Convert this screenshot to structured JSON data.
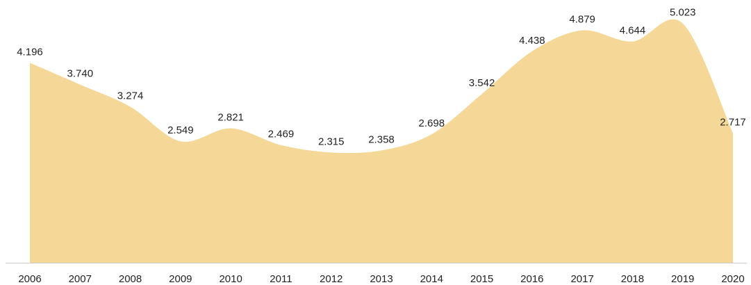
{
  "chart_data": {
    "type": "area",
    "categories": [
      "2006",
      "2007",
      "2008",
      "2009",
      "2010",
      "2011",
      "2012",
      "2013",
      "2014",
      "2015",
      "2016",
      "2017",
      "2018",
      "2019",
      "2020"
    ],
    "values": [
      4.196,
      3.74,
      3.274,
      2.549,
      2.821,
      2.469,
      2.315,
      2.358,
      2.698,
      3.542,
      4.438,
      4.879,
      4.644,
      5.023,
      2.717
    ],
    "value_labels": [
      "4.196",
      "3.740",
      "3.274",
      "2.549",
      "2.821",
      "2.469",
      "2.315",
      "2.358",
      "2.698",
      "3.542",
      "4.438",
      "4.879",
      "4.644",
      "5.023",
      "2.717"
    ],
    "color": "#f5d897",
    "ylim": [
      0,
      5.5
    ]
  }
}
